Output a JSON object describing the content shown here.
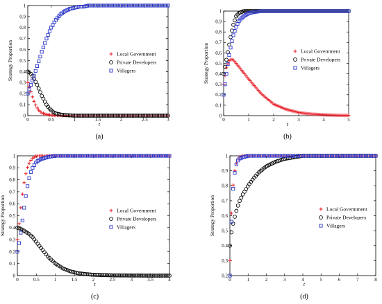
{
  "figure": {
    "panels": [
      "(a)",
      "(b)",
      "(c)",
      "(d)"
    ]
  },
  "chart_data": [
    {
      "type": "scatter",
      "panel_label": "(a)",
      "xlabel": "t",
      "ylabel": "Strategy Proportion",
      "xlim": [
        0,
        3
      ],
      "ylim": [
        0,
        1
      ],
      "xticks": [
        "0",
        "0.5",
        "1",
        "1.5",
        "2",
        "2.5",
        "3"
      ],
      "yticks": [
        "0",
        "0.1",
        "0.2",
        "0.3",
        "0.4",
        "0.5",
        "0.6",
        "0.7",
        "0.8",
        "0.9",
        "1"
      ],
      "legend_position": "middle-right",
      "series": [
        {
          "name": "Local Government",
          "marker": "plus",
          "color": "#e8202a",
          "x": [
            0,
            0.05,
            0.1,
            0.15,
            0.2,
            0.25,
            0.3,
            0.4,
            0.5,
            0.6,
            0.8,
            1,
            1.5,
            2,
            2.5,
            3
          ],
          "y": [
            0.3,
            0.24,
            0.17,
            0.11,
            0.07,
            0.04,
            0.025,
            0.01,
            0.005,
            0.002,
            0.001,
            0,
            0,
            0,
            0,
            0
          ]
        },
        {
          "name": "Private Developers",
          "marker": "circle",
          "color": "#000000",
          "x": [
            0,
            0.05,
            0.1,
            0.15,
            0.2,
            0.25,
            0.3,
            0.35,
            0.4,
            0.45,
            0.5,
            0.55,
            0.6,
            0.7,
            0.8,
            1,
            1.5,
            2,
            2.5,
            3
          ],
          "y": [
            0.4,
            0.39,
            0.36,
            0.32,
            0.28,
            0.23,
            0.18,
            0.14,
            0.1,
            0.07,
            0.05,
            0.03,
            0.02,
            0.01,
            0.005,
            0,
            0,
            0,
            0,
            0
          ]
        },
        {
          "name": "Villagers",
          "marker": "square",
          "color": "#2a36c9",
          "x": [
            0,
            0.1,
            0.2,
            0.3,
            0.4,
            0.5,
            0.6,
            0.7,
            0.8,
            0.9,
            1,
            1.1,
            1.2,
            1.3,
            1.5,
            1.7,
            2,
            2.5,
            3
          ],
          "y": [
            0.2,
            0.32,
            0.45,
            0.58,
            0.7,
            0.8,
            0.87,
            0.92,
            0.95,
            0.97,
            0.98,
            0.99,
            0.99,
            1,
            1,
            1,
            1,
            1,
            1
          ]
        }
      ]
    },
    {
      "type": "scatter",
      "panel_label": "(b)",
      "xlabel": "t",
      "ylabel": "Strategy Proportion",
      "xlim": [
        0,
        5
      ],
      "ylim": [
        0,
        1
      ],
      "xticks": [
        "0",
        "1",
        "2",
        "3",
        "4",
        "5"
      ],
      "yticks": [
        "0",
        "0.1",
        "0.2",
        "0.3",
        "0.4",
        "0.5",
        "0.6",
        "0.7",
        "0.8",
        "0.9",
        "1"
      ],
      "legend_position": "middle-right",
      "series": [
        {
          "name": "Local Government",
          "marker": "plus",
          "color": "#e8202a",
          "x": [
            0,
            0.1,
            0.2,
            0.3,
            0.4,
            0.5,
            0.7,
            1,
            1.5,
            2,
            2.5,
            3,
            3.5,
            4,
            4.5,
            5
          ],
          "y": [
            0.3,
            0.45,
            0.52,
            0.54,
            0.53,
            0.5,
            0.44,
            0.35,
            0.21,
            0.11,
            0.06,
            0.03,
            0.015,
            0.008,
            0.004,
            0.002
          ]
        },
        {
          "name": "Private Developers",
          "marker": "circle",
          "color": "#000000",
          "x": [
            0,
            0.1,
            0.2,
            0.3,
            0.4,
            0.5,
            0.6,
            0.7,
            0.8,
            1,
            1.5,
            2,
            3,
            4,
            5
          ],
          "y": [
            0.4,
            0.52,
            0.65,
            0.78,
            0.88,
            0.95,
            0.98,
            0.99,
            1,
            1,
            1,
            1,
            1,
            1,
            1
          ]
        },
        {
          "name": "Villagers",
          "marker": "square",
          "color": "#2a36c9",
          "x": [
            0,
            0.1,
            0.2,
            0.3,
            0.4,
            0.5,
            0.6,
            0.7,
            0.8,
            1,
            1.2,
            1.5,
            2,
            3,
            4,
            5
          ],
          "y": [
            0.2,
            0.38,
            0.55,
            0.68,
            0.78,
            0.85,
            0.9,
            0.93,
            0.95,
            0.98,
            0.99,
            1,
            1,
            1,
            1,
            1
          ]
        }
      ]
    },
    {
      "type": "scatter",
      "panel_label": "(c)",
      "xlabel": "t",
      "ylabel": "Strategy Proportion",
      "xlim": [
        0,
        4
      ],
      "ylim": [
        0,
        1
      ],
      "xticks": [
        "0",
        "0.5",
        "1",
        "1.5",
        "2",
        "2.5",
        "3",
        "3.5",
        "4"
      ],
      "yticks": [
        "0",
        "0.1",
        "0.2",
        "0.3",
        "0.4",
        "0.5",
        "0.6",
        "0.7",
        "0.8",
        "0.9",
        "1"
      ],
      "legend_position": "middle-right",
      "series": [
        {
          "name": "Local Government",
          "marker": "plus",
          "color": "#e8202a",
          "x": [
            0,
            0.05,
            0.1,
            0.15,
            0.2,
            0.25,
            0.3,
            0.35,
            0.4,
            0.45,
            0.5,
            0.6,
            0.8,
            1,
            1.5,
            2,
            2.5,
            3,
            3.5,
            4
          ],
          "y": [
            0.3,
            0.45,
            0.6,
            0.72,
            0.82,
            0.89,
            0.93,
            0.96,
            0.98,
            0.99,
            1,
            1,
            1,
            1,
            1,
            1,
            1,
            1,
            1,
            1
          ]
        },
        {
          "name": "Private Developers",
          "marker": "circle",
          "color": "#000000",
          "x": [
            0,
            0.1,
            0.2,
            0.3,
            0.4,
            0.5,
            0.6,
            0.7,
            0.8,
            0.9,
            1,
            1.2,
            1.4,
            1.6,
            1.8,
            2,
            2.5,
            3,
            3.5,
            4
          ],
          "y": [
            0.4,
            0.39,
            0.37,
            0.35,
            0.32,
            0.28,
            0.24,
            0.2,
            0.16,
            0.13,
            0.1,
            0.06,
            0.035,
            0.02,
            0.012,
            0.007,
            0.002,
            0.001,
            0,
            0
          ]
        },
        {
          "name": "Villagers",
          "marker": "square",
          "color": "#2a36c9",
          "x": [
            0,
            0.05,
            0.1,
            0.15,
            0.2,
            0.25,
            0.3,
            0.35,
            0.4,
            0.5,
            0.6,
            0.7,
            0.8,
            1,
            1.5,
            2,
            2.5,
            3,
            3.5,
            4
          ],
          "y": [
            0.2,
            0.28,
            0.38,
            0.5,
            0.62,
            0.72,
            0.8,
            0.86,
            0.9,
            0.95,
            0.97,
            0.98,
            0.99,
            1,
            1,
            1,
            1,
            1,
            1,
            1
          ]
        }
      ]
    },
    {
      "type": "scatter",
      "panel_label": "(d)",
      "xlabel": "t",
      "ylabel": "Strategy Proportion",
      "xlim": [
        0,
        8
      ],
      "ylim": [
        0.2,
        1
      ],
      "xticks": [
        "0",
        "1",
        "2",
        "3",
        "4",
        "5",
        "6",
        "7",
        "8"
      ],
      "yticks": [
        "0.2",
        "0.3",
        "0.4",
        "0.5",
        "0.6",
        "0.7",
        "0.8",
        "0.9",
        "1"
      ],
      "legend_position": "middle-right",
      "series": [
        {
          "name": "Local Govermment",
          "marker": "plus",
          "color": "#e8202a",
          "x": [
            0,
            0.05,
            0.1,
            0.15,
            0.2,
            0.3,
            0.4,
            0.5,
            0.7,
            1,
            1.5,
            2,
            3,
            4,
            5,
            6,
            7,
            8
          ],
          "y": [
            0.3,
            0.5,
            0.65,
            0.76,
            0.84,
            0.93,
            0.97,
            0.99,
            1,
            1,
            1,
            1,
            1,
            1,
            1,
            1,
            1,
            1
          ]
        },
        {
          "name": "Private Developers",
          "marker": "circle",
          "color": "#000000",
          "x": [
            0,
            0.1,
            0.2,
            0.3,
            0.4,
            0.5,
            0.7,
            1,
            1.3,
            1.6,
            2,
            2.5,
            3,
            3.5,
            4,
            5,
            6,
            7,
            8
          ],
          "y": [
            0.4,
            0.5,
            0.56,
            0.61,
            0.65,
            0.69,
            0.74,
            0.8,
            0.85,
            0.89,
            0.93,
            0.96,
            0.98,
            0.99,
            1,
            1,
            1,
            1,
            1
          ]
        },
        {
          "name": "Villagers",
          "marker": "square",
          "color": "#2a36c9",
          "x": [
            0,
            0.05,
            0.1,
            0.15,
            0.2,
            0.3,
            0.4,
            0.5,
            0.7,
            1,
            1.5,
            2,
            3,
            4,
            5,
            6,
            7,
            8
          ],
          "y": [
            0.2,
            0.42,
            0.6,
            0.73,
            0.82,
            0.92,
            0.96,
            0.98,
            0.99,
            1,
            1,
            1,
            1,
            1,
            1,
            1,
            1,
            1
          ]
        }
      ]
    }
  ]
}
